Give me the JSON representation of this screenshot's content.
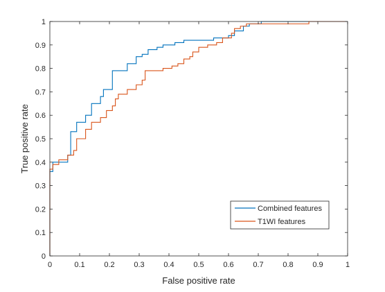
{
  "chart_data": {
    "type": "line",
    "xlabel": "False positive rate",
    "ylabel": "True positive rate",
    "xlim": [
      0,
      1
    ],
    "ylim": [
      0,
      1
    ],
    "xticks": [
      "0",
      "0.1",
      "0.2",
      "0.3",
      "0.4",
      "0.5",
      "0.6",
      "0.7",
      "0.8",
      "0.9",
      "1"
    ],
    "yticks": [
      "0",
      "0.1",
      "0.2",
      "0.3",
      "0.4",
      "0.5",
      "0.6",
      "0.7",
      "0.8",
      "0.9",
      "1"
    ],
    "grid": false,
    "legend_position": "bottom-right",
    "series": [
      {
        "name": "Combined features",
        "color": "#0072BD",
        "points": [
          [
            0,
            0
          ],
          [
            0,
            0.36
          ],
          [
            0.01,
            0.36
          ],
          [
            0.01,
            0.4
          ],
          [
            0.06,
            0.4
          ],
          [
            0.06,
            0.43
          ],
          [
            0.07,
            0.43
          ],
          [
            0.07,
            0.53
          ],
          [
            0.09,
            0.53
          ],
          [
            0.09,
            0.57
          ],
          [
            0.12,
            0.57
          ],
          [
            0.12,
            0.6
          ],
          [
            0.14,
            0.6
          ],
          [
            0.14,
            0.65
          ],
          [
            0.17,
            0.65
          ],
          [
            0.17,
            0.68
          ],
          [
            0.18,
            0.68
          ],
          [
            0.18,
            0.71
          ],
          [
            0.21,
            0.71
          ],
          [
            0.21,
            0.79
          ],
          [
            0.26,
            0.79
          ],
          [
            0.26,
            0.82
          ],
          [
            0.29,
            0.82
          ],
          [
            0.29,
            0.85
          ],
          [
            0.31,
            0.85
          ],
          [
            0.31,
            0.86
          ],
          [
            0.33,
            0.86
          ],
          [
            0.33,
            0.88
          ],
          [
            0.36,
            0.88
          ],
          [
            0.36,
            0.89
          ],
          [
            0.38,
            0.89
          ],
          [
            0.38,
            0.9
          ],
          [
            0.42,
            0.9
          ],
          [
            0.42,
            0.91
          ],
          [
            0.45,
            0.91
          ],
          [
            0.45,
            0.92
          ],
          [
            0.55,
            0.92
          ],
          [
            0.55,
            0.93
          ],
          [
            0.6,
            0.93
          ],
          [
            0.6,
            0.94
          ],
          [
            0.62,
            0.94
          ],
          [
            0.62,
            0.96
          ],
          [
            0.65,
            0.96
          ],
          [
            0.65,
            0.98
          ],
          [
            0.67,
            0.98
          ],
          [
            0.67,
            0.99
          ],
          [
            0.71,
            0.99
          ],
          [
            0.71,
            1
          ],
          [
            1,
            1
          ]
        ]
      },
      {
        "name": "T1WI features",
        "color": "#D95319",
        "points": [
          [
            0,
            0
          ],
          [
            0,
            0.37
          ],
          [
            0.01,
            0.37
          ],
          [
            0.01,
            0.39
          ],
          [
            0.03,
            0.39
          ],
          [
            0.03,
            0.41
          ],
          [
            0.06,
            0.41
          ],
          [
            0.06,
            0.43
          ],
          [
            0.08,
            0.43
          ],
          [
            0.08,
            0.45
          ],
          [
            0.09,
            0.45
          ],
          [
            0.09,
            0.5
          ],
          [
            0.12,
            0.5
          ],
          [
            0.12,
            0.54
          ],
          [
            0.14,
            0.54
          ],
          [
            0.14,
            0.57
          ],
          [
            0.17,
            0.57
          ],
          [
            0.17,
            0.59
          ],
          [
            0.19,
            0.59
          ],
          [
            0.19,
            0.62
          ],
          [
            0.21,
            0.62
          ],
          [
            0.21,
            0.64
          ],
          [
            0.22,
            0.64
          ],
          [
            0.22,
            0.67
          ],
          [
            0.23,
            0.67
          ],
          [
            0.23,
            0.69
          ],
          [
            0.26,
            0.69
          ],
          [
            0.26,
            0.71
          ],
          [
            0.29,
            0.71
          ],
          [
            0.29,
            0.73
          ],
          [
            0.31,
            0.73
          ],
          [
            0.31,
            0.75
          ],
          [
            0.32,
            0.75
          ],
          [
            0.32,
            0.79
          ],
          [
            0.38,
            0.79
          ],
          [
            0.38,
            0.8
          ],
          [
            0.41,
            0.8
          ],
          [
            0.41,
            0.81
          ],
          [
            0.43,
            0.81
          ],
          [
            0.43,
            0.82
          ],
          [
            0.45,
            0.82
          ],
          [
            0.45,
            0.84
          ],
          [
            0.47,
            0.84
          ],
          [
            0.47,
            0.85
          ],
          [
            0.48,
            0.85
          ],
          [
            0.48,
            0.87
          ],
          [
            0.5,
            0.87
          ],
          [
            0.5,
            0.89
          ],
          [
            0.53,
            0.89
          ],
          [
            0.53,
            0.9
          ],
          [
            0.56,
            0.9
          ],
          [
            0.56,
            0.91
          ],
          [
            0.58,
            0.91
          ],
          [
            0.58,
            0.93
          ],
          [
            0.61,
            0.93
          ],
          [
            0.61,
            0.95
          ],
          [
            0.62,
            0.95
          ],
          [
            0.62,
            0.97
          ],
          [
            0.64,
            0.97
          ],
          [
            0.64,
            0.98
          ],
          [
            0.66,
            0.98
          ],
          [
            0.66,
            0.99
          ],
          [
            0.87,
            0.99
          ],
          [
            0.87,
            1
          ],
          [
            1,
            1
          ]
        ]
      }
    ]
  }
}
